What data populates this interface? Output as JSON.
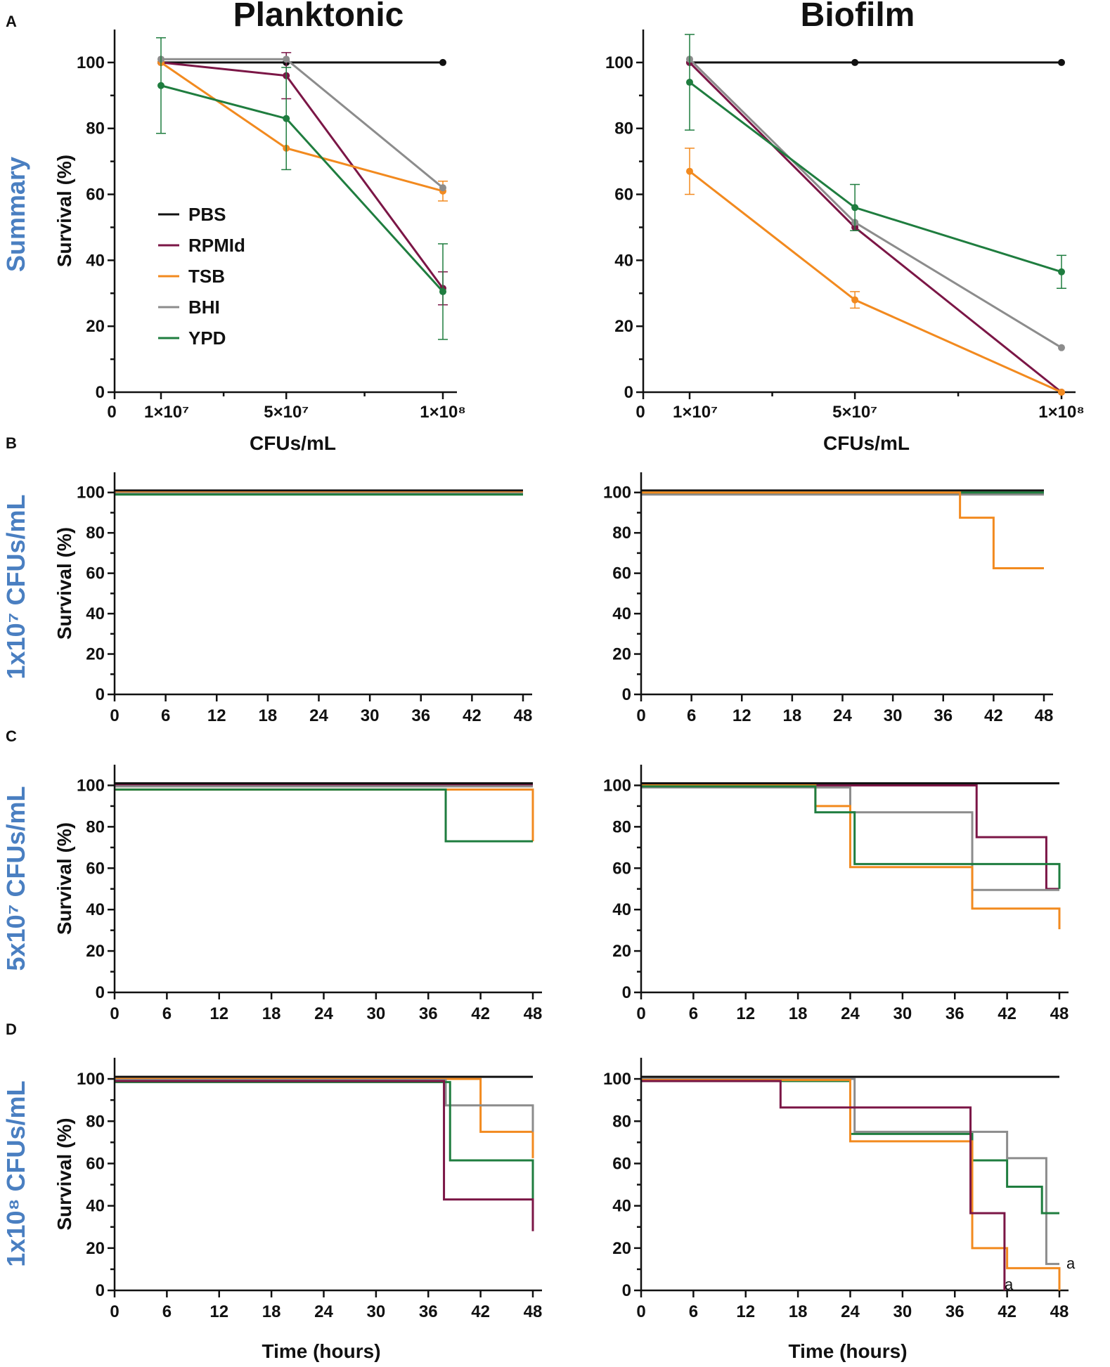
{
  "figure": {
    "column_titles": [
      "Planktonic",
      "Biofilm"
    ],
    "panel_letters": [
      "A",
      "B",
      "C",
      "D"
    ],
    "row_labels": [
      "Summary",
      "1x10⁷ CFUs/mL",
      "5x10⁷ CFUs/mL",
      "1x10⁸ CFUs/mL"
    ]
  },
  "colors": {
    "PBS": "#111111",
    "RPMId": "#7b1646",
    "TSB": "#f28a1f",
    "BHI": "#8c8c8c",
    "YPD": "#1f7d3f"
  },
  "chart_data": [
    {
      "id": "A-planktonic",
      "type": "line",
      "xlabel": "CFUs/mL",
      "ylabel": "Survival (%)",
      "ylim": [
        0,
        110
      ],
      "yticks": [
        0,
        20,
        40,
        60,
        80,
        100
      ],
      "x_tick_labels": [
        "0",
        "1×10⁷",
        "5×10⁷",
        "1×10⁸"
      ],
      "legend": [
        "PBS",
        "RPMId",
        "TSB",
        "BHI",
        "YPD"
      ],
      "series": [
        {
          "name": "PBS",
          "x": [
            10000000.0,
            50000000.0,
            100000000.0
          ],
          "values": [
            100,
            100,
            100
          ],
          "err": [
            0,
            0,
            0
          ]
        },
        {
          "name": "RPMId",
          "x": [
            10000000.0,
            50000000.0,
            100000000.0
          ],
          "values": [
            100,
            96,
            31.5
          ],
          "err": [
            0,
            7,
            5
          ]
        },
        {
          "name": "TSB",
          "x": [
            10000000.0,
            50000000.0,
            100000000.0
          ],
          "values": [
            100,
            74,
            61
          ],
          "err": [
            0,
            0,
            3
          ]
        },
        {
          "name": "BHI",
          "x": [
            10000000.0,
            50000000.0,
            100000000.0
          ],
          "values": [
            101,
            101,
            62
          ],
          "err": [
            0,
            0,
            0
          ]
        },
        {
          "name": "YPD",
          "x": [
            10000000.0,
            50000000.0,
            100000000.0
          ],
          "values": [
            93,
            83,
            30.5
          ],
          "err": [
            14.5,
            15.5,
            14.5
          ]
        }
      ]
    },
    {
      "id": "A-biofilm",
      "type": "line",
      "xlabel": "CFUs/mL",
      "ylabel": "",
      "ylim": [
        0,
        110
      ],
      "yticks": [
        0,
        20,
        40,
        60,
        80,
        100
      ],
      "x_tick_labels": [
        "0",
        "1×10⁷",
        "5×10⁷",
        "1×10⁸"
      ],
      "series": [
        {
          "name": "PBS",
          "x": [
            10000000.0,
            50000000.0,
            100000000.0
          ],
          "values": [
            100,
            100,
            100
          ],
          "err": [
            0,
            0,
            0
          ]
        },
        {
          "name": "RPMId",
          "x": [
            10000000.0,
            50000000.0,
            100000000.0
          ],
          "values": [
            100,
            50,
            0
          ],
          "err": [
            0,
            0,
            0
          ]
        },
        {
          "name": "TSB",
          "x": [
            10000000.0,
            50000000.0,
            100000000.0
          ],
          "values": [
            67,
            28,
            0
          ],
          "err": [
            7,
            2.5,
            0
          ]
        },
        {
          "name": "BHI",
          "x": [
            10000000.0,
            50000000.0,
            100000000.0
          ],
          "values": [
            101,
            51.5,
            13.5
          ],
          "err": [
            0,
            0,
            0
          ]
        },
        {
          "name": "YPD",
          "x": [
            10000000.0,
            50000000.0,
            100000000.0
          ],
          "values": [
            94,
            56,
            36.5
          ],
          "err": [
            14.5,
            7,
            5
          ]
        }
      ]
    },
    {
      "id": "B-planktonic",
      "type": "step",
      "ylabel": "Survival (%)",
      "xlabel": "",
      "xlim": [
        0,
        48
      ],
      "ylim": [
        0,
        110
      ],
      "xticks": [
        0,
        6,
        12,
        18,
        24,
        30,
        36,
        42,
        48
      ],
      "yticks": [
        0,
        20,
        40,
        60,
        80,
        100
      ],
      "series": [
        {
          "name": "PBS",
          "points": [
            [
              0,
              101
            ],
            [
              48,
              101
            ]
          ]
        },
        {
          "name": "RPMId",
          "points": [
            [
              0,
              100
            ],
            [
              48,
              100
            ]
          ]
        },
        {
          "name": "TSB",
          "points": [
            [
              0,
              100
            ],
            [
              48,
              100
            ]
          ]
        },
        {
          "name": "BHI",
          "points": [
            [
              0,
              99.5
            ],
            [
              48,
              99.5
            ]
          ]
        },
        {
          "name": "YPD",
          "points": [
            [
              0,
              99
            ],
            [
              48,
              99
            ]
          ]
        }
      ]
    },
    {
      "id": "B-biofilm",
      "type": "step",
      "ylabel": "",
      "xlabel": "",
      "xlim": [
        0,
        48
      ],
      "ylim": [
        0,
        110
      ],
      "xticks": [
        0,
        6,
        12,
        18,
        24,
        30,
        36,
        42,
        48
      ],
      "yticks": [
        0,
        20,
        40,
        60,
        80,
        100
      ],
      "series": [
        {
          "name": "PBS",
          "points": [
            [
              0,
              101
            ],
            [
              48,
              101
            ]
          ]
        },
        {
          "name": "RPMId",
          "points": [
            [
              0,
              99.5
            ],
            [
              48,
              99.5
            ]
          ]
        },
        {
          "name": "BHI",
          "points": [
            [
              0,
              99
            ],
            [
              48,
              99
            ]
          ]
        },
        {
          "name": "YPD",
          "points": [
            [
              0,
              100
            ],
            [
              48,
              100
            ]
          ]
        },
        {
          "name": "TSB",
          "points": [
            [
              0,
              100
            ],
            [
              38,
              100
            ],
            [
              38,
              87.5
            ],
            [
              42,
              87.5
            ],
            [
              42,
              62.5
            ],
            [
              48,
              62.5
            ]
          ]
        }
      ]
    },
    {
      "id": "C-planktonic",
      "type": "step",
      "ylabel": "Survival (%)",
      "xlabel": "",
      "xlim": [
        0,
        48
      ],
      "ylim": [
        0,
        110
      ],
      "xticks": [
        0,
        6,
        12,
        18,
        24,
        30,
        36,
        42,
        48
      ],
      "yticks": [
        0,
        20,
        40,
        60,
        80,
        100
      ],
      "series": [
        {
          "name": "PBS",
          "points": [
            [
              0,
              101
            ],
            [
              48,
              101
            ]
          ]
        },
        {
          "name": "RPMId",
          "points": [
            [
              0,
              100
            ],
            [
              48,
              100
            ]
          ]
        },
        {
          "name": "BHI",
          "points": [
            [
              0,
              99.5
            ],
            [
              48,
              99.5
            ]
          ]
        },
        {
          "name": "TSB",
          "points": [
            [
              0,
              98
            ],
            [
              48,
              98
            ],
            [
              48,
              73
            ]
          ]
        },
        {
          "name": "YPD",
          "points": [
            [
              0,
              98
            ],
            [
              38,
              98
            ],
            [
              38,
              73
            ],
            [
              48,
              73
            ]
          ]
        }
      ]
    },
    {
      "id": "C-biofilm",
      "type": "step",
      "ylabel": "",
      "xlabel": "",
      "xlim": [
        0,
        48
      ],
      "ylim": [
        0,
        110
      ],
      "xticks": [
        0,
        6,
        12,
        18,
        24,
        30,
        36,
        42,
        48
      ],
      "yticks": [
        0,
        20,
        40,
        60,
        80,
        100
      ],
      "series": [
        {
          "name": "PBS",
          "points": [
            [
              0,
              101
            ],
            [
              48,
              101
            ]
          ]
        },
        {
          "name": "RPMId",
          "points": [
            [
              0,
              100
            ],
            [
              38.5,
              100
            ],
            [
              38.5,
              75
            ],
            [
              46.5,
              75
            ],
            [
              46.5,
              50
            ],
            [
              48,
              50
            ]
          ]
        },
        {
          "name": "BHI",
          "points": [
            [
              0,
              99
            ],
            [
              24,
              99
            ],
            [
              24,
              87
            ],
            [
              38,
              87
            ],
            [
              38,
              49.5
            ],
            [
              48,
              49.5
            ]
          ]
        },
        {
          "name": "TSB",
          "points": [
            [
              0,
              100
            ],
            [
              20,
              100
            ],
            [
              20,
              90
            ],
            [
              24,
              90
            ],
            [
              24,
              60.5
            ],
            [
              38,
              60.5
            ],
            [
              38,
              40.5
            ],
            [
              48,
              40.5
            ],
            [
              48,
              30.5
            ]
          ]
        },
        {
          "name": "YPD",
          "points": [
            [
              0,
              99.5
            ],
            [
              20,
              99.5
            ],
            [
              20,
              87
            ],
            [
              24.5,
              87
            ],
            [
              24.5,
              62
            ],
            [
              48,
              62
            ],
            [
              48,
              50
            ]
          ]
        }
      ]
    },
    {
      "id": "D-planktonic",
      "type": "step",
      "ylabel": "Survival (%)",
      "xlabel": "Time (hours)",
      "xlim": [
        0,
        48
      ],
      "ylim": [
        0,
        110
      ],
      "xticks": [
        0,
        6,
        12,
        18,
        24,
        30,
        36,
        42,
        48
      ],
      "yticks": [
        0,
        20,
        40,
        60,
        80,
        100
      ],
      "series": [
        {
          "name": "PBS",
          "points": [
            [
              0,
              101
            ],
            [
              48,
              101
            ]
          ]
        },
        {
          "name": "TSB",
          "points": [
            [
              0,
              100
            ],
            [
              42,
              100
            ],
            [
              42,
              75
            ],
            [
              48,
              75
            ],
            [
              48,
              62.5
            ]
          ]
        },
        {
          "name": "BHI",
          "points": [
            [
              0,
              99.5
            ],
            [
              38,
              99.5
            ],
            [
              38,
              87.5
            ],
            [
              48,
              87.5
            ],
            [
              48,
              75
            ]
          ]
        },
        {
          "name": "YPD",
          "points": [
            [
              0,
              98.5
            ],
            [
              38.5,
              98.5
            ],
            [
              38.5,
              61.5
            ],
            [
              48,
              61.5
            ],
            [
              48,
              36.5
            ]
          ]
        },
        {
          "name": "RPMId",
          "points": [
            [
              0,
              99
            ],
            [
              37.8,
              99
            ],
            [
              37.8,
              43
            ],
            [
              48,
              43
            ],
            [
              48,
              28
            ]
          ]
        }
      ]
    },
    {
      "id": "D-biofilm",
      "type": "step",
      "ylabel": "",
      "xlabel": "Time (hours)",
      "xlim": [
        0,
        48
      ],
      "ylim": [
        0,
        110
      ],
      "xticks": [
        0,
        6,
        12,
        18,
        24,
        30,
        36,
        42,
        48
      ],
      "yticks": [
        0,
        20,
        40,
        60,
        80,
        100
      ],
      "annotations": [
        {
          "text": "a",
          "x": 49.3,
          "y": 13
        },
        {
          "text": "a",
          "x": 42.2,
          "y": 3
        }
      ],
      "series": [
        {
          "name": "PBS",
          "points": [
            [
              0,
              101
            ],
            [
              48,
              101
            ]
          ]
        },
        {
          "name": "BHI",
          "points": [
            [
              0,
              100
            ],
            [
              24.5,
              100
            ],
            [
              24.5,
              75
            ],
            [
              42,
              75
            ],
            [
              42,
              62.5
            ],
            [
              46.5,
              62.5
            ],
            [
              46.5,
              12.5
            ],
            [
              48,
              12.5
            ]
          ]
        },
        {
          "name": "YPD",
          "points": [
            [
              0,
              99
            ],
            [
              24,
              99
            ],
            [
              24,
              74
            ],
            [
              38,
              74
            ],
            [
              38,
              61.5
            ],
            [
              42,
              61.5
            ],
            [
              42,
              49
            ],
            [
              46,
              49
            ],
            [
              46,
              36.5
            ],
            [
              48,
              36.5
            ]
          ]
        },
        {
          "name": "TSB",
          "points": [
            [
              0,
              99.5
            ],
            [
              24,
              99.5
            ],
            [
              24,
              70.5
            ],
            [
              38,
              70.5
            ],
            [
              38,
              20
            ],
            [
              42,
              20
            ],
            [
              42,
              10.5
            ],
            [
              48,
              10.5
            ],
            [
              48,
              0
            ]
          ]
        },
        {
          "name": "RPMId",
          "points": [
            [
              0,
              99
            ],
            [
              16,
              99
            ],
            [
              16,
              86.5
            ],
            [
              37.8,
              86.5
            ],
            [
              37.8,
              36.5
            ],
            [
              41.7,
              36.5
            ],
            [
              41.7,
              0
            ]
          ]
        }
      ]
    }
  ]
}
